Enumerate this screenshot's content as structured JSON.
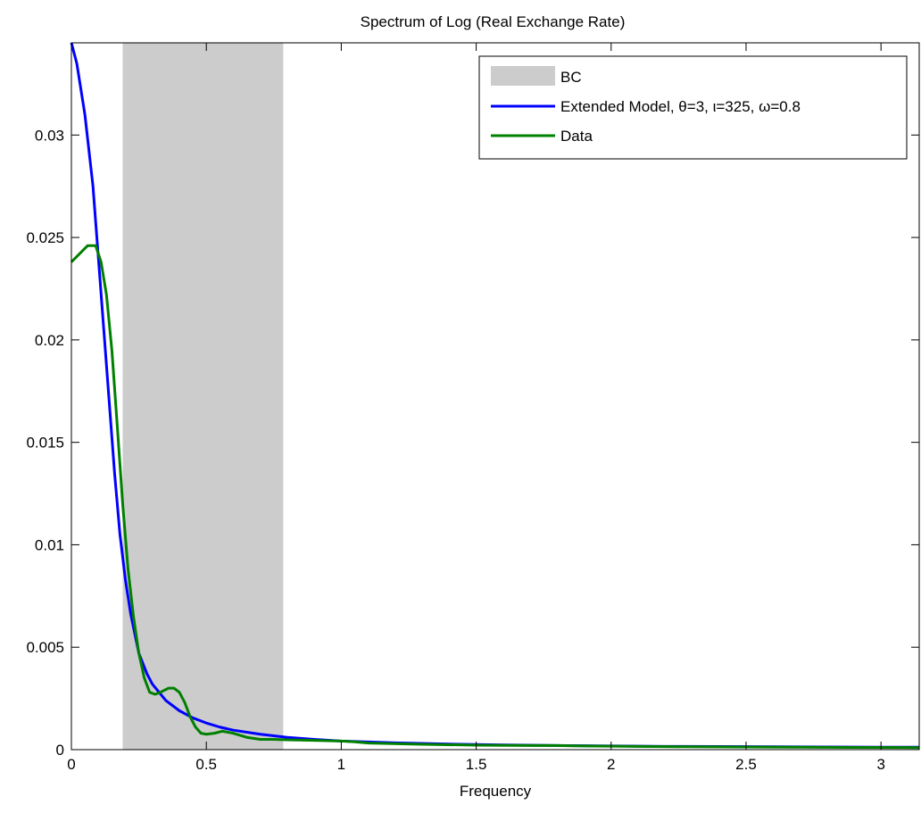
{
  "chart_data": {
    "type": "line",
    "title": "Spectrum of Log (Real Exchange Rate)",
    "xlabel": "Frequency",
    "ylabel": "",
    "xlim": [
      0,
      3.1416
    ],
    "ylim": [
      0,
      0.0345
    ],
    "xticks": [
      0,
      0.5,
      1,
      1.5,
      2,
      2.5,
      3
    ],
    "xtick_labels": [
      "0",
      "0.5",
      "1",
      "1.5",
      "2",
      "2.5",
      "3"
    ],
    "yticks": [
      0,
      0.005,
      0.01,
      0.015,
      0.02,
      0.025,
      0.03
    ],
    "ytick_labels": [
      "0",
      "0.005",
      "0.01",
      "0.015",
      "0.02",
      "0.025",
      "0.03"
    ],
    "grid": false,
    "legend_position": "top-right",
    "shaded_band": {
      "name": "BC",
      "x_start": 0.19,
      "x_end": 0.785,
      "color": "#cccccc"
    },
    "series": [
      {
        "name": "Extended Model, θ=3, ι=325, ω=0.8",
        "color": "#0000ff",
        "x": [
          0,
          0.02,
          0.05,
          0.08,
          0.1,
          0.12,
          0.14,
          0.16,
          0.18,
          0.2,
          0.22,
          0.25,
          0.28,
          0.3,
          0.35,
          0.4,
          0.45,
          0.5,
          0.55,
          0.6,
          0.7,
          0.8,
          0.9,
          1.0,
          1.2,
          1.4,
          1.6,
          1.8,
          2.0,
          2.2,
          2.4,
          2.6,
          2.8,
          3.0,
          3.1416
        ],
        "y": [
          0.0345,
          0.0335,
          0.031,
          0.0275,
          0.024,
          0.0205,
          0.017,
          0.0135,
          0.0105,
          0.0083,
          0.0066,
          0.0047,
          0.0037,
          0.0032,
          0.0024,
          0.0019,
          0.00155,
          0.0013,
          0.0011,
          0.00095,
          0.00075,
          0.0006,
          0.0005,
          0.00042,
          0.00033,
          0.00027,
          0.00023,
          0.0002,
          0.00018,
          0.00016,
          0.00015,
          0.00014,
          0.00013,
          0.00012,
          0.00012
        ]
      },
      {
        "name": "Data",
        "color": "#008000",
        "x": [
          0,
          0.03,
          0.06,
          0.09,
          0.11,
          0.13,
          0.15,
          0.17,
          0.19,
          0.21,
          0.23,
          0.25,
          0.27,
          0.29,
          0.31,
          0.33,
          0.36,
          0.38,
          0.4,
          0.42,
          0.44,
          0.46,
          0.48,
          0.5,
          0.53,
          0.56,
          0.6,
          0.65,
          0.7,
          0.75,
          0.8,
          0.9,
          1.0,
          1.05,
          1.1,
          1.3,
          1.5,
          1.7,
          1.8,
          1.9,
          2.1,
          2.3,
          2.5,
          2.7,
          2.9,
          3.1416
        ],
        "y": [
          0.0238,
          0.0242,
          0.0246,
          0.0246,
          0.0238,
          0.0222,
          0.0195,
          0.0158,
          0.012,
          0.0088,
          0.0065,
          0.0047,
          0.0035,
          0.0028,
          0.0027,
          0.0028,
          0.003,
          0.003,
          0.0028,
          0.0023,
          0.0016,
          0.0011,
          0.0008,
          0.00075,
          0.0008,
          0.0009,
          0.0008,
          0.0006,
          0.0005,
          0.0005,
          0.00048,
          0.00045,
          0.00042,
          0.00038,
          0.00032,
          0.00026,
          0.00022,
          0.0002,
          0.0002,
          0.00018,
          0.00016,
          0.00014,
          0.00013,
          0.00012,
          0.00011,
          0.0001
        ]
      }
    ]
  }
}
